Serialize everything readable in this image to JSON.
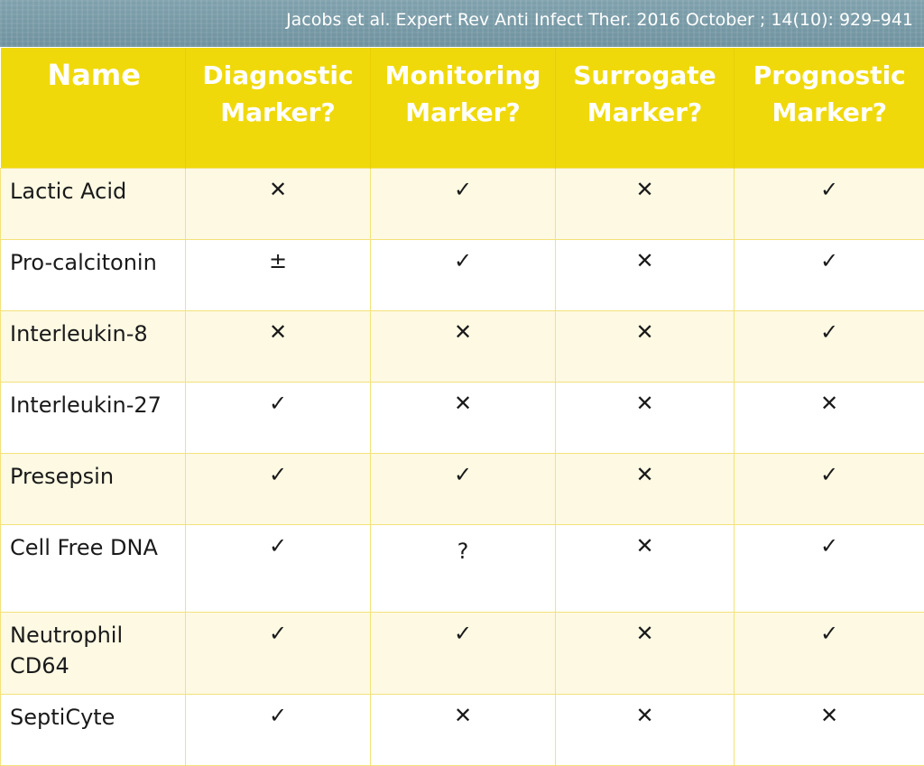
{
  "citation": "Jacobs et al. Expert Rev Anti Infect Ther. 2016 October ; 14(10): 929–941",
  "table": {
    "headers": [
      "Name",
      "Diagnostic Marker?",
      "Monitoring Marker?",
      "Surrogate Marker?",
      "Prognostic Marker?"
    ],
    "rows": [
      [
        "Lactic Acid",
        "✕",
        "✓",
        "✕",
        "✓"
      ],
      [
        "Pro-calcitonin",
        "±",
        "✓",
        "✕",
        "✓"
      ],
      [
        "Interleukin-8",
        "✕",
        "✕",
        "✕",
        "✓"
      ],
      [
        "Interleukin-27",
        "✓",
        "✕",
        "✕",
        "✕"
      ],
      [
        "Presepsin",
        "✓",
        "✓",
        "✕",
        "✓"
      ],
      [
        "Cell Free DNA",
        "✓",
        "?",
        "✕",
        "✓"
      ],
      [
        "Neutrophil CD64",
        "✓",
        "✓",
        "✕",
        "✓"
      ],
      [
        "SeptiCyte",
        "✓",
        "✕",
        "✕",
        "✕"
      ]
    ]
  },
  "colors": {
    "banner": "#7fa1ad",
    "header": "#f0d90b",
    "stripe": "#fdf9e3"
  }
}
